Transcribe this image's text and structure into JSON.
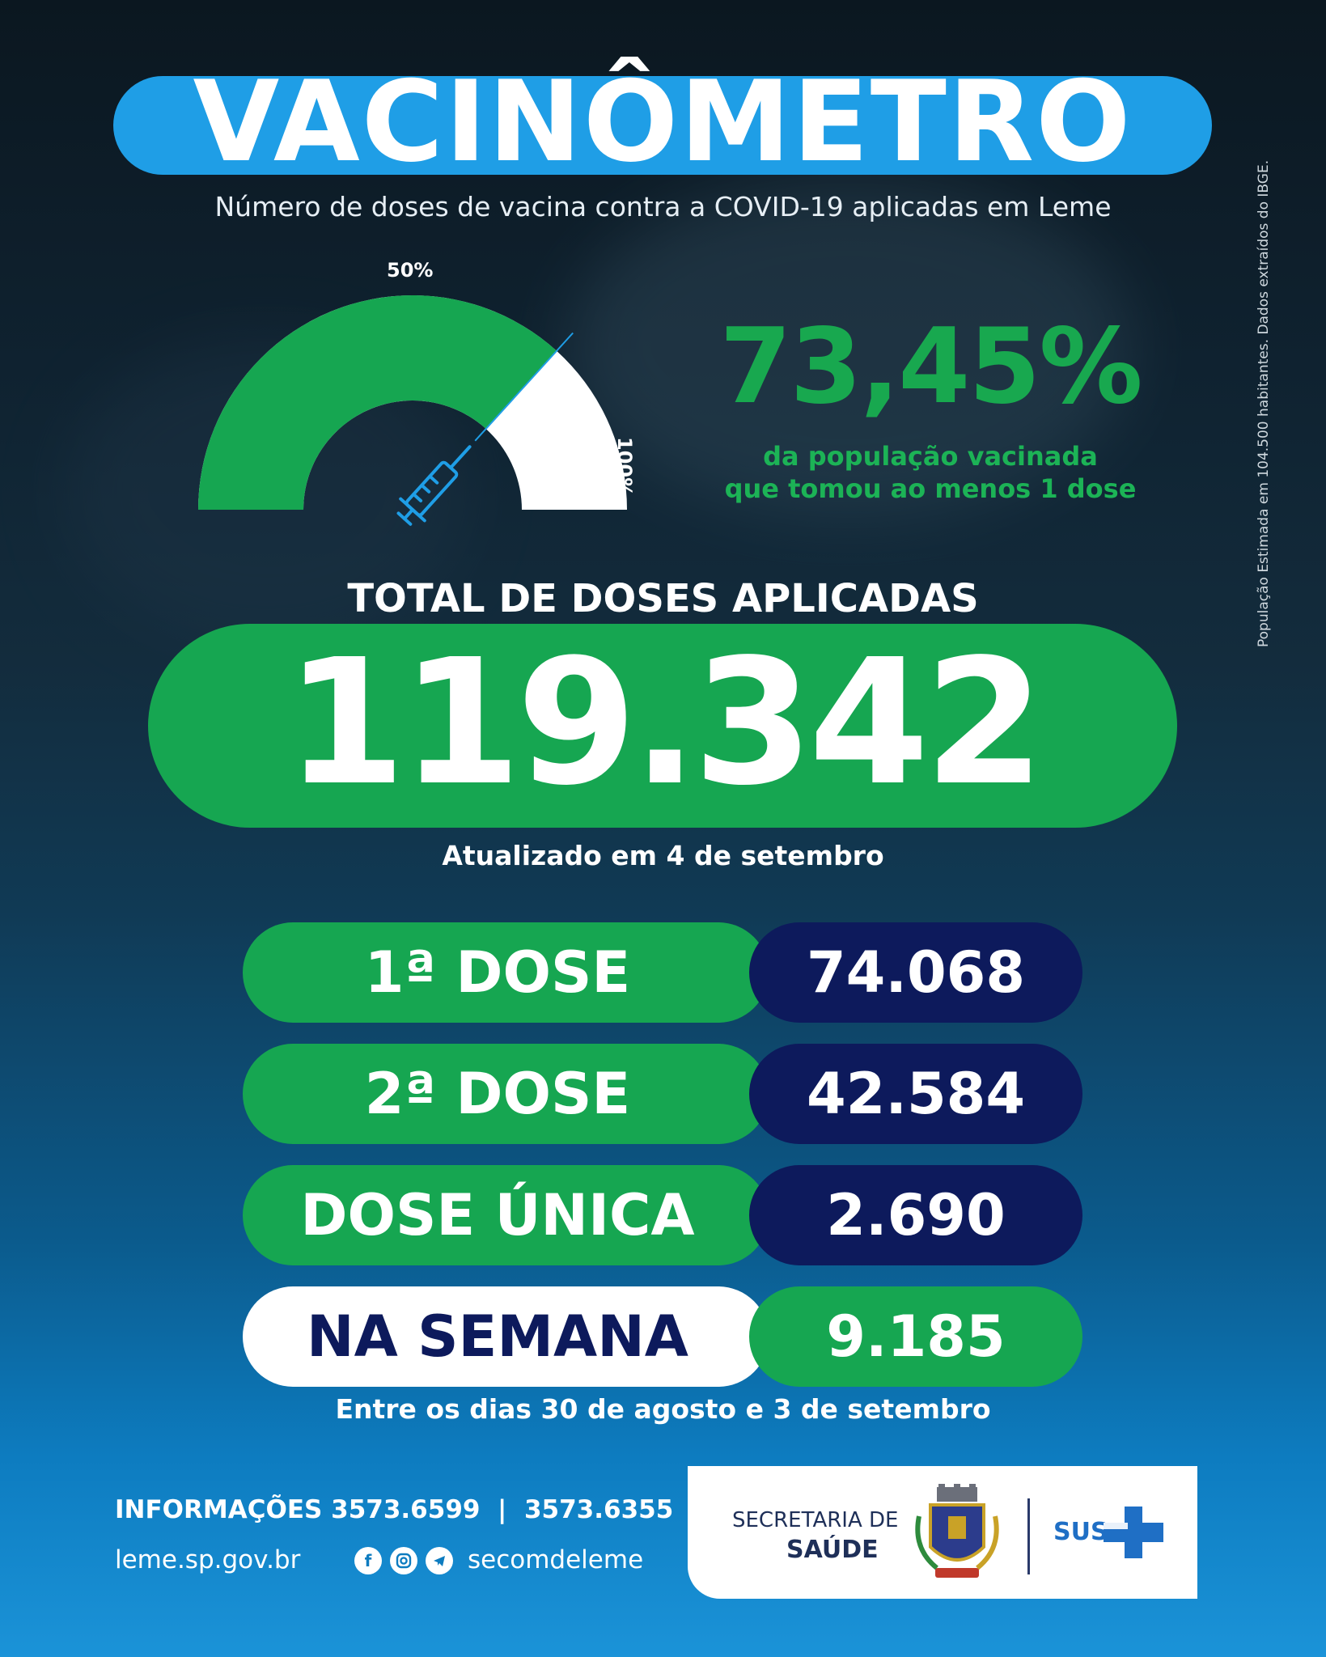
{
  "title": "VACINÔMETRO",
  "subtitle": "Número de doses de vacina contra a COVID-19 aplicadas em Leme",
  "side_note": "População Estimada em 104.500 habitantes. Dados extraídos do IBGE.",
  "gauge": {
    "label_50": "50%",
    "label_100": "100%",
    "fraction": 0.7345,
    "icon": "syringe-icon"
  },
  "vaccinated_percent": "73,45%",
  "vaccinated_text_1": "da população vacinada",
  "vaccinated_text_2": "que tomou ao menos 1 dose",
  "total_heading": "TOTAL DE DOSES APLICADAS",
  "total_value": "119.342",
  "updated": "Atualizado em 4 de setembro",
  "doses": [
    {
      "label": "1ª DOSE",
      "value": "74.068"
    },
    {
      "label": "2ª DOSE",
      "value": "42.584"
    },
    {
      "label": "DOSE ÚNICA",
      "value": "2.690"
    },
    {
      "label": "NA SEMANA",
      "value": "9.185"
    }
  ],
  "week_note": "Entre os dias 30 de agosto e 3 de setembro",
  "footer": {
    "info": "INFORMAÇÕES 3573.6599  |  3573.6355",
    "website": "leme.sp.gov.br",
    "social_icons": [
      "facebook-icon",
      "instagram-icon",
      "telegram-icon"
    ],
    "social_handle": "secomdeleme",
    "secretaria": "SECRETARIA DE",
    "saude": "SAÚDE",
    "sus": "SUS"
  },
  "colors": {
    "green": "#16a651",
    "navy": "#0d1a5c",
    "blue": "#1f9ee6"
  }
}
